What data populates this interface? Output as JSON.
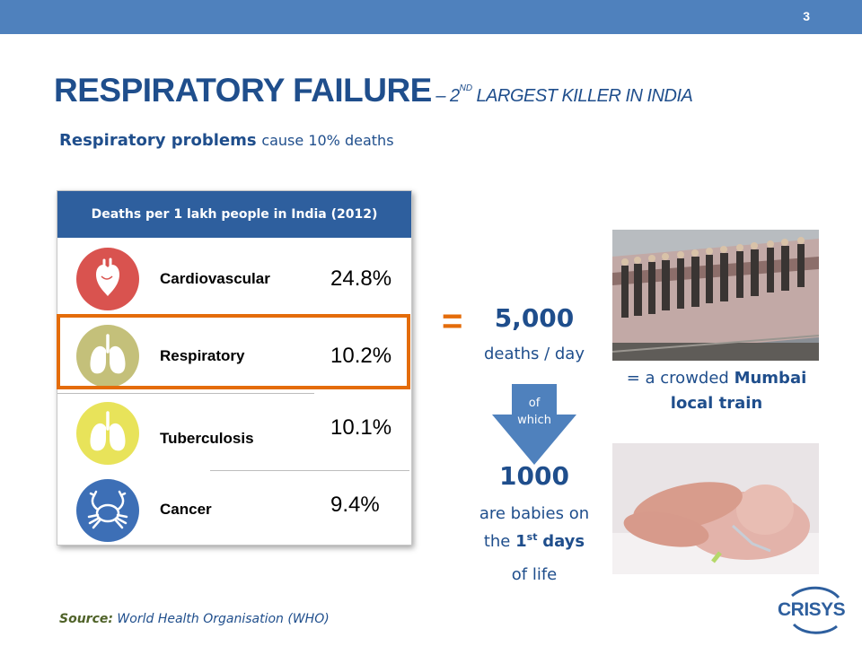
{
  "slide": {
    "number": "3"
  },
  "title": {
    "main": "RESPIRATORY FAILURE",
    "sub_prefix": "– 2",
    "sub_sup": "ND",
    "sub_suffix": "LARGEST KILLER IN INDIA"
  },
  "subtitle": {
    "bold": "Respiratory problems",
    "rest": "cause 10% deaths"
  },
  "table": {
    "header": "Deaths per 1 lakh people  in India (2012)",
    "rows": [
      {
        "label": "Cardiovascular",
        "value": "24.8%",
        "icon": "heart-icon",
        "color": "#d9534f"
      },
      {
        "label": "Respiratory",
        "value": "10.2%",
        "icon": "lungs-icon",
        "color": "#c4c07a"
      },
      {
        "label": "Tuberculosis",
        "value": "10.1%",
        "icon": "lungs-icon",
        "color": "#e8e35a"
      },
      {
        "label": "Cancer",
        "value": "9.4%",
        "icon": "crab-icon",
        "color": "#3d6fb6"
      }
    ],
    "highlighted_row": "Respiratory"
  },
  "stats": {
    "equals": "=",
    "deaths_number": "5,000",
    "deaths_label": "deaths / day",
    "arrow_label_1": "of",
    "arrow_label_2": "which",
    "babies_number": "1000",
    "babies_line1": "are babies on",
    "babies_line2_prefix": "the",
    "babies_line2_num": "1",
    "babies_line2_sup": "st",
    "babies_line2_bold": "days",
    "babies_line3": "of life"
  },
  "train_caption": {
    "prefix": "= a crowded",
    "bold1": "Mumbai",
    "bold2": "local train"
  },
  "source": {
    "label": "Source:",
    "text": "World Health Organisation (WHO)"
  },
  "logo": {
    "text": "CRISYS"
  },
  "colors": {
    "accent_blue": "#1f4e8c",
    "top_bar": "#4f81bd",
    "table_header": "#2e5f9e",
    "highlight": "#e46c0a",
    "arrow": "#4f81bd"
  }
}
